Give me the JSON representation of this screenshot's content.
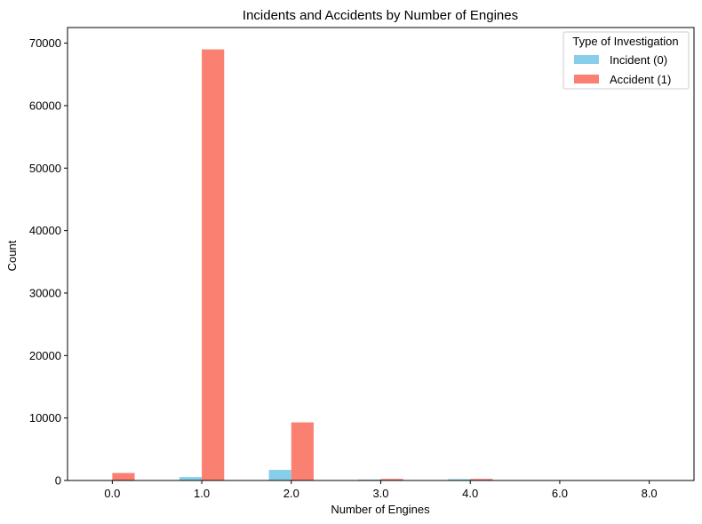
{
  "chart_data": {
    "type": "bar",
    "title": "Incidents and Accidents by Number of Engines",
    "xlabel": "Number of Engines",
    "ylabel": "Count",
    "categories": [
      "0.0",
      "1.0",
      "2.0",
      "3.0",
      "4.0",
      "6.0",
      "8.0"
    ],
    "series": [
      {
        "name": "Incident (0)",
        "color": "#87ceeb",
        "values": [
          10,
          550,
          1700,
          150,
          200,
          0,
          0
        ]
      },
      {
        "name": "Accident (1)",
        "color": "#fa8072",
        "values": [
          1200,
          69000,
          9300,
          250,
          250,
          1,
          2
        ]
      }
    ],
    "ylim": [
      0,
      72500
    ],
    "yticks": [
      0,
      10000,
      20000,
      30000,
      40000,
      50000,
      60000,
      70000
    ],
    "legend": {
      "title": "Type of Investigation",
      "position": "top-right"
    },
    "grid": false
  }
}
